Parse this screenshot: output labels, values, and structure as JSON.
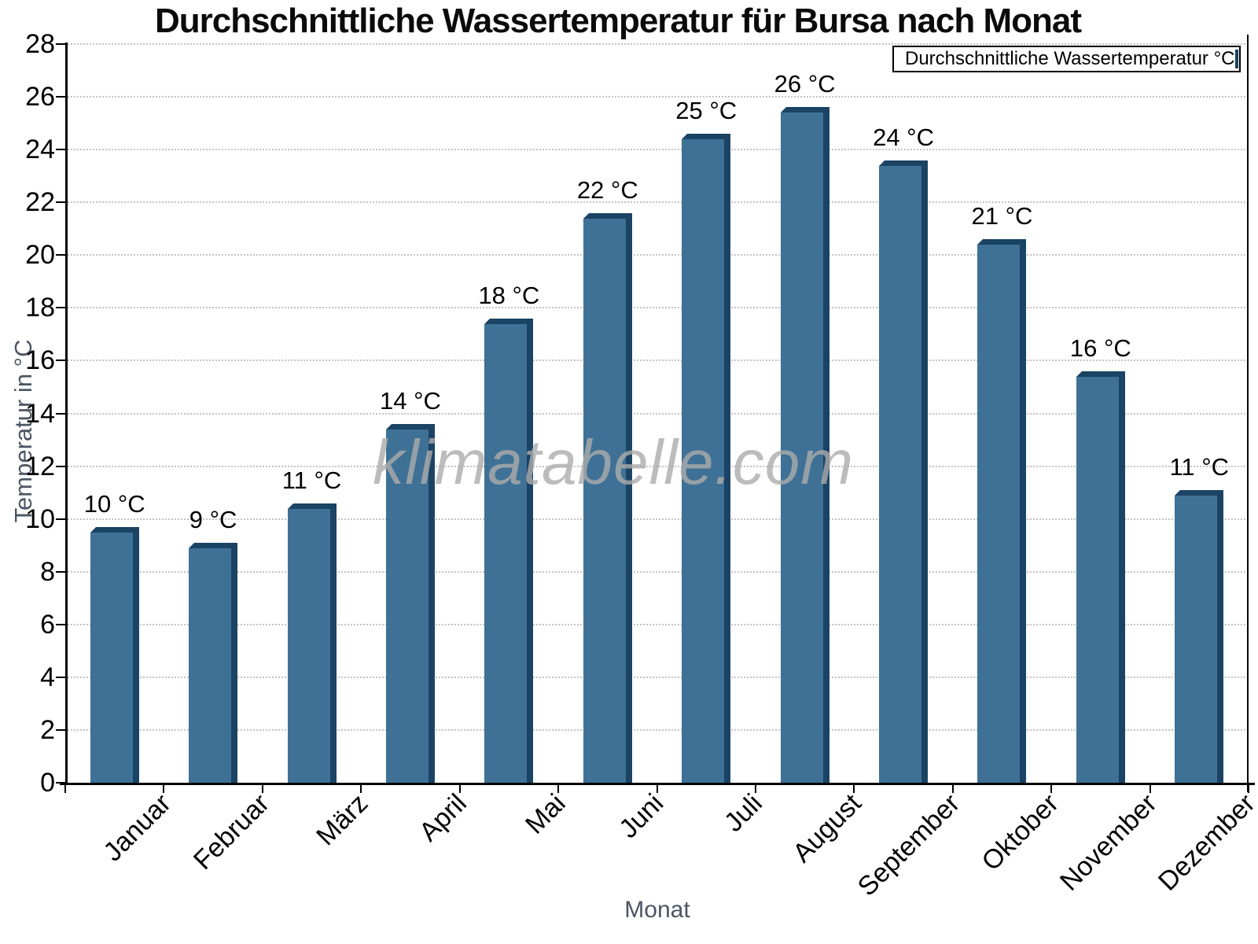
{
  "title": "Durchschnittliche Wassertemperatur für Bursa nach Monat",
  "legend": {
    "label": "Durchschnittliche Wassertemperatur °C"
  },
  "watermark": "klimatabelle.com",
  "y_axis": {
    "title": "Temperatur in °C",
    "ticks": [
      0,
      2,
      4,
      6,
      8,
      10,
      12,
      14,
      16,
      18,
      20,
      22,
      24,
      26,
      28
    ]
  },
  "x_axis": {
    "title": "Monat"
  },
  "chart_data": {
    "type": "bar",
    "title": "Durchschnittliche Wassertemperatur für Bursa nach Monat",
    "categories": [
      "Januar",
      "Februar",
      "März",
      "April",
      "Mai",
      "Juni",
      "Juli",
      "August",
      "September",
      "Oktober",
      "November",
      "Dezember"
    ],
    "values": [
      10,
      9,
      11,
      14,
      18,
      22,
      25,
      26,
      24,
      21,
      16,
      11
    ],
    "value_labels": [
      "10 °C",
      "9 °C",
      "11 °C",
      "14 °C",
      "18 °C",
      "22 °C",
      "25 °C",
      "26 °C",
      "24 °C",
      "21 °C",
      "16 °C",
      "11 °C"
    ],
    "bar_tops_estimated": [
      9.7,
      9.1,
      10.6,
      13.6,
      17.6,
      21.6,
      24.6,
      25.6,
      23.6,
      20.6,
      15.6,
      11.1
    ],
    "unit": "°C",
    "xlabel": "Monat",
    "ylabel": "Temperatur in °C",
    "ylim": [
      0,
      28
    ],
    "y_tick_step": 2,
    "grid": "horizontal-dotted",
    "legend_entry": "Durchschnittliche Wassertemperatur °C",
    "legend_position": "top-right",
    "colors": {
      "bar_face": "#3E7195",
      "bar_edge": "#1B4364",
      "legend_swatch": "#4A7CA6",
      "grid": "#C3C3C3",
      "axis": "#000000",
      "axis_title": "#4B5563",
      "watermark": "#ACACAC",
      "background": "#FFFFFF"
    }
  }
}
